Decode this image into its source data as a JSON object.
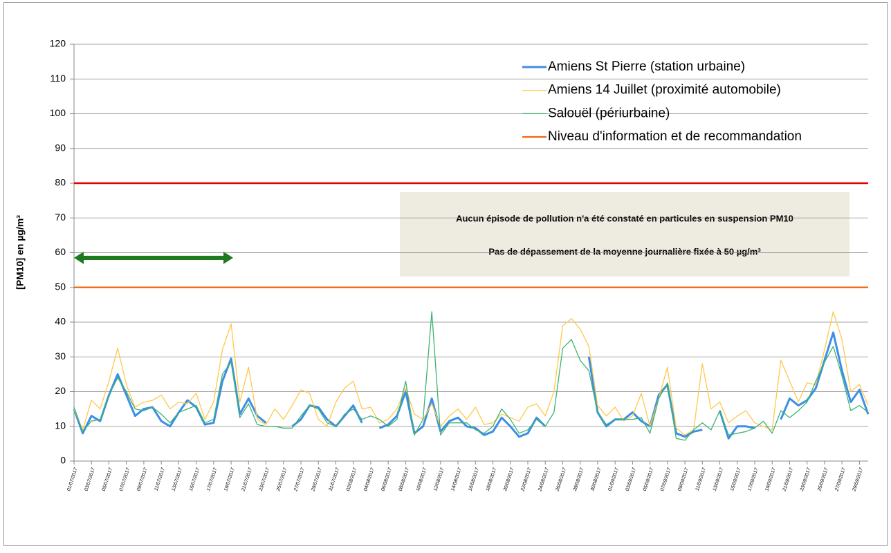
{
  "chart_data": {
    "type": "line",
    "ylabel": "[PM10] en µg/m³",
    "categories": [
      "01/07/2017",
      null,
      "03/07/2017",
      null,
      "05/07/2017",
      null,
      "07/07/2017",
      null,
      "09/07/2017",
      null,
      "11/07/2017",
      null,
      "13/07/2017",
      null,
      "15/07/2017",
      null,
      "17/07/2017",
      null,
      "19/07/2017",
      null,
      "21/07/2017",
      null,
      "23/07/2017",
      null,
      "25/07/2017",
      null,
      "27/07/2017",
      null,
      "29/07/2017",
      null,
      "31/07/2017",
      null,
      "02/08/2017",
      null,
      "04/08/2017",
      null,
      "06/08/2017",
      null,
      "08/08/2017",
      null,
      "10/08/2017",
      null,
      "12/08/2017",
      null,
      "14/08/2017",
      null,
      "16/08/2017",
      null,
      "18/08/2017",
      null,
      "20/08/2017",
      null,
      "22/08/2017",
      null,
      "24/08/2017",
      null,
      "26/08/2017",
      null,
      "28/08/2017",
      null,
      "30/08/2017",
      null,
      "01/09/2017",
      null,
      "03/09/2017",
      null,
      "05/09/2017",
      null,
      "07/09/2017",
      null,
      "09/09/2017",
      null,
      "11/09/2017",
      null,
      "13/09/2017",
      null,
      "15/09/2017",
      null,
      "17/09/2017",
      null,
      "19/09/2017",
      null,
      "21/09/2017",
      null,
      "23/09/2017",
      null,
      "25/09/2017",
      null,
      "27/09/2017",
      null,
      "29/09/2017",
      null
    ],
    "series": [
      {
        "name": "Amiens St Pierre (station urbaine)",
        "color": "#3c8ee6",
        "width": 3,
        "values": [
          15,
          8,
          13,
          11.5,
          19,
          25,
          19,
          13,
          15,
          15.5,
          11.5,
          10,
          14,
          17.5,
          15.5,
          10.5,
          11,
          23,
          29.5,
          13.5,
          18,
          13,
          11,
          null,
          null,
          10,
          12,
          16,
          15.5,
          12,
          10,
          13,
          16,
          11,
          null,
          9.5,
          10.5,
          13,
          20,
          8,
          10,
          18,
          8.5,
          11.5,
          12.5,
          10,
          9.5,
          7.5,
          8.5,
          12.5,
          10,
          7,
          8,
          12.5,
          10,
          null,
          null,
          null,
          null,
          30,
          14,
          10,
          12,
          12,
          14,
          11.5,
          10,
          19,
          22,
          8,
          7,
          8.5,
          9,
          null,
          14.5,
          6.5,
          10,
          10,
          9.5,
          null,
          null,
          12,
          18,
          16,
          17.5,
          21,
          29,
          37,
          26,
          17,
          20.5,
          13.5
        ]
      },
      {
        "name": "Amiens 14 Juillet (proximité automobile)",
        "color": "#ffc84a",
        "width": 1.3,
        "values": [
          15,
          9,
          17.5,
          15,
          23,
          32.5,
          22,
          15.5,
          17,
          17.5,
          19,
          15,
          17,
          16.5,
          19.5,
          12,
          17,
          32,
          39.5,
          17,
          27,
          12,
          10.5,
          15,
          12,
          16,
          20.5,
          19.5,
          12,
          10,
          17,
          21,
          23,
          15,
          15.5,
          11,
          12,
          15,
          21,
          13.5,
          12,
          16.5,
          10,
          13,
          15,
          12,
          15.5,
          10.5,
          11,
          13.5,
          12.5,
          11.5,
          15.5,
          16.5,
          13,
          20,
          39,
          41,
          38,
          33,
          16,
          13,
          15.5,
          11.5,
          13,
          19.5,
          10,
          18,
          27,
          9.5,
          7.5,
          9,
          28,
          15,
          17,
          11,
          13,
          14.5,
          11,
          10,
          9,
          29,
          23,
          17,
          22.5,
          22,
          32,
          43,
          35,
          20,
          22,
          16
        ]
      },
      {
        "name": "Salouël (périurbaine)",
        "color": "#3cb371",
        "width": 1.3,
        "values": [
          15.5,
          8.5,
          11.5,
          12,
          19,
          24,
          20,
          15,
          14.5,
          15.5,
          13.5,
          11,
          14,
          15,
          16,
          11,
          12,
          25,
          28.5,
          12.5,
          16.5,
          10.5,
          10,
          10,
          9.5,
          9.5,
          13,
          16,
          15,
          11,
          10,
          13.5,
          15,
          12,
          13,
          12,
          10,
          12,
          23,
          7.5,
          12,
          43,
          7.5,
          11,
          11,
          11,
          9,
          8,
          10,
          15,
          12,
          8,
          9,
          12,
          10,
          14,
          32.5,
          35,
          29,
          26,
          14,
          10.5,
          12,
          12,
          12,
          12.5,
          8,
          18,
          22.5,
          6.5,
          6,
          9,
          11,
          9,
          14.5,
          7.5,
          8,
          8.5,
          9.5,
          11.5,
          8,
          14.5,
          12.5,
          14.5,
          17,
          23,
          28.5,
          33,
          24.5,
          14.5,
          16,
          14
        ]
      }
    ],
    "reference_lines": [
      {
        "name": "Niveau d'information et de recommandation",
        "value": 50,
        "color": "#f07020"
      },
      {
        "value": 80,
        "color": "#e00000"
      }
    ],
    "annotations": [
      "Aucun épisode de pollution n'a été constaté en particules en suspension PM10",
      "Pas de dépassement de la moyenne journalière fixée à 50 µg/m³"
    ],
    "ylim": [
      0,
      120
    ],
    "yticks": [
      0,
      10,
      20,
      30,
      40,
      50,
      60,
      70,
      80,
      90,
      100,
      110,
      120
    ],
    "grid": true,
    "grid_color": "#888888",
    "legend": "upper right"
  }
}
